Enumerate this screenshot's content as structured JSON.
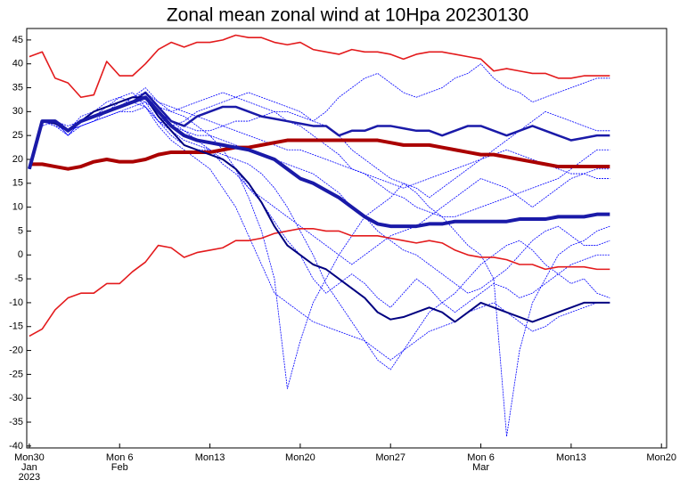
{
  "chart_data": {
    "type": "line",
    "title": "Zonal mean zonal wind at 10Hpa 20230130",
    "x": [
      0,
      1,
      2,
      3,
      4,
      5,
      6,
      7,
      8,
      9,
      10,
      11,
      12,
      13,
      14,
      15,
      16,
      17,
      18,
      19,
      20,
      21,
      22,
      23,
      24,
      25,
      26,
      27,
      28,
      29,
      30,
      31,
      32,
      33,
      34,
      35,
      36,
      37,
      38,
      39,
      40,
      41,
      42,
      43,
      44,
      45
    ],
    "xlim": [
      -0.2,
      49.4
    ],
    "xticks": [
      {
        "value": 0,
        "label": "Mon30\nJan\n2023"
      },
      {
        "value": 7,
        "label": "Mon 6\nFeb"
      },
      {
        "value": 14,
        "label": "Mon13"
      },
      {
        "value": 21,
        "label": "Mon20"
      },
      {
        "value": 28,
        "label": "Mon27"
      },
      {
        "value": 35,
        "label": "Mon 6\nMar"
      },
      {
        "value": 42,
        "label": "Mon13"
      },
      {
        "value": 49,
        "label": "Mon20"
      }
    ],
    "ylim": [
      -40.4,
      47.4
    ],
    "yticks": [
      -40,
      -35,
      -30,
      -25,
      -20,
      -15,
      -10,
      -5,
      0,
      5,
      10,
      15,
      20,
      25,
      30,
      35,
      40,
      45
    ],
    "series": [
      {
        "color": "#0000ff",
        "line_width": 0.8,
        "values": [
          18,
          28,
          27,
          25,
          27,
          28,
          29,
          30,
          31,
          32,
          28,
          25,
          23,
          22,
          22,
          21,
          20,
          19,
          17,
          14,
          10,
          5,
          0,
          -6,
          -10,
          -14,
          -18,
          -22,
          -24,
          -20,
          -16,
          -12,
          -10,
          -8,
          -5,
          -2,
          0,
          2,
          3,
          1,
          -2,
          -4,
          -6,
          -5,
          -8,
          -9
        ]
      },
      {
        "color": "#0000ff",
        "line_width": 0.8,
        "values": [
          18,
          28,
          28,
          26,
          29,
          30,
          31,
          32,
          33,
          35,
          32,
          30,
          29,
          27,
          25,
          22,
          18,
          12,
          5,
          -5,
          -28,
          -18,
          -10,
          -5,
          0,
          4,
          8,
          10,
          12,
          15,
          13,
          10,
          8,
          5,
          2,
          0,
          -5,
          -38,
          -20,
          -10,
          -5,
          0,
          2,
          3,
          5,
          6
        ]
      },
      {
        "color": "#0000ff",
        "line_width": 0.8,
        "values": [
          18,
          27,
          28,
          25,
          28,
          29,
          31,
          33,
          34,
          31,
          28,
          27,
          28,
          30,
          31,
          32,
          33,
          34,
          33,
          32,
          31,
          30,
          28,
          30,
          33,
          35,
          37,
          38,
          36,
          34,
          33,
          34,
          35,
          37,
          38,
          40,
          37,
          35,
          34,
          32,
          33,
          34,
          35,
          36,
          37,
          37
        ]
      },
      {
        "color": "#0000ff",
        "line_width": 0.8,
        "values": [
          18,
          28,
          27,
          26,
          27,
          28,
          29,
          30,
          30,
          31,
          27,
          24,
          22,
          20,
          18,
          14,
          10,
          4,
          -2,
          -8,
          -10,
          -12,
          -14,
          -15,
          -16,
          -17,
          -18,
          -20,
          -22,
          -20,
          -18,
          -16,
          -15,
          -14,
          -12,
          -11,
          -10,
          -12,
          -14,
          -16,
          -15,
          -13,
          -12,
          -11,
          -10,
          -10
        ]
      },
      {
        "color": "#0000ff",
        "line_width": 0.8,
        "values": [
          18,
          28,
          28,
          26,
          28,
          29,
          30,
          31,
          32,
          33,
          31,
          30,
          31,
          32,
          33,
          34,
          33,
          32,
          31,
          30,
          30,
          29,
          28,
          27,
          25,
          22,
          20,
          18,
          16,
          15,
          14,
          12,
          14,
          16,
          18,
          20,
          22,
          24,
          26,
          28,
          30,
          29,
          28,
          27,
          26,
          26
        ]
      },
      {
        "color": "#0000ff",
        "line_width": 0.8,
        "values": [
          18,
          28,
          28,
          25,
          28,
          29,
          30,
          31,
          33,
          33,
          29,
          27,
          26,
          25,
          25,
          24,
          23,
          22,
          21,
          20,
          19,
          18,
          17,
          15,
          13,
          10,
          8,
          5,
          3,
          1,
          0,
          -2,
          -4,
          -6,
          -8,
          -7,
          -5,
          -3,
          0,
          3,
          5,
          6,
          4,
          2,
          2,
          3
        ]
      },
      {
        "color": "#0000ff",
        "line_width": 0.8,
        "values": [
          18,
          28,
          28,
          27,
          28,
          30,
          32,
          33,
          32,
          31,
          28,
          26,
          24,
          23,
          22,
          20,
          18,
          14,
          12,
          10,
          8,
          6,
          4,
          2,
          0,
          -2,
          0,
          2,
          4,
          5,
          6,
          8,
          10,
          12,
          14,
          16,
          15,
          14,
          12,
          10,
          12,
          14,
          16,
          17,
          18,
          18
        ]
      },
      {
        "color": "#0000ff",
        "line_width": 0.8,
        "values": [
          18,
          28,
          27,
          26,
          28,
          29,
          30,
          31,
          32,
          33,
          30,
          28,
          27,
          26,
          26,
          27,
          28,
          28,
          29,
          30,
          28,
          27,
          25,
          23,
          21,
          18,
          17,
          15,
          13,
          12,
          10,
          9,
          8,
          8,
          9,
          10,
          11,
          12,
          13,
          14,
          15,
          16,
          18,
          20,
          22,
          22
        ]
      },
      {
        "color": "#0000ff",
        "line_width": 0.8,
        "values": [
          18,
          28,
          28,
          26,
          27,
          28,
          30,
          32,
          33,
          32,
          30,
          28,
          26,
          24,
          22,
          19,
          17,
          14,
          11,
          7,
          3,
          0,
          -5,
          -8,
          -6,
          -4,
          -6,
          -9,
          -11,
          -8,
          -5,
          -7,
          -10,
          -12,
          -10,
          -8,
          -6,
          -7,
          -9,
          -8,
          -6,
          -4,
          -2,
          -1,
          0,
          0
        ]
      },
      {
        "color": "#0000ff",
        "line_width": 0.8,
        "values": [
          18,
          28,
          28,
          26,
          28,
          30,
          31,
          32,
          33,
          34,
          32,
          31,
          30,
          29,
          28,
          27,
          26,
          25,
          24,
          23,
          22,
          22,
          21,
          20,
          19,
          18,
          17,
          16,
          15,
          14,
          15,
          16,
          17,
          18,
          19,
          20,
          21,
          22,
          21,
          20,
          19,
          18,
          17,
          17,
          16,
          16
        ]
      },
      {
        "color": "#e31a1c",
        "line_width": 1.6,
        "values": [
          41.5,
          42.5,
          37,
          36,
          33,
          33.5,
          40.5,
          37.5,
          37.5,
          40,
          43,
          44.5,
          43.5,
          44.5,
          44.5,
          45,
          46,
          45.5,
          45.5,
          44.5,
          44,
          44.5,
          43,
          42.5,
          42,
          43,
          42.5,
          42.5,
          42,
          41,
          42,
          42.5,
          42.5,
          42,
          41.5,
          41,
          38.5,
          39,
          38.5,
          38,
          38,
          37,
          37,
          37.5,
          37.5,
          37.5
        ]
      },
      {
        "color": "#e31a1c",
        "line_width": 1.6,
        "values": [
          -17,
          -15.5,
          -11.5,
          -9,
          -8,
          -8,
          -6,
          -6,
          -3.5,
          -1.5,
          2,
          1.5,
          -0.5,
          0.5,
          1,
          1.5,
          3,
          3,
          3.5,
          4.5,
          5,
          5.5,
          5.5,
          5,
          5,
          4,
          4,
          4,
          3.5,
          3,
          2.5,
          3,
          2.5,
          1,
          0,
          -0.5,
          -0.5,
          -1,
          -2,
          -2,
          -3,
          -2.5,
          -2.5,
          -2.5,
          -3,
          -3
        ]
      },
      {
        "color": "#aa0000",
        "line_width": 4,
        "values": [
          19,
          19,
          18.5,
          18,
          18.5,
          19.5,
          20,
          19.5,
          19.5,
          20,
          21,
          21.5,
          21.5,
          21.5,
          21.5,
          22,
          22.5,
          22.5,
          23,
          23.5,
          24,
          24,
          24,
          24,
          24,
          24,
          24,
          24,
          23.5,
          23,
          23,
          23,
          22.5,
          22,
          21.5,
          21,
          21,
          20.5,
          20,
          19.5,
          19,
          18.5,
          18.5,
          18.5,
          18.5,
          18.5
        ]
      },
      {
        "color": "#1a1aa8",
        "line_width": 2.5,
        "values": [
          18,
          28,
          28,
          26,
          28,
          29,
          30,
          31,
          32,
          34,
          31,
          28,
          27,
          29,
          30,
          31,
          31,
          30,
          29,
          28.5,
          28,
          27.5,
          27,
          27,
          25,
          26,
          26,
          27,
          27,
          26.5,
          26,
          26,
          25,
          26,
          27,
          27,
          26,
          25,
          26,
          27,
          26,
          25,
          24,
          24.5,
          25,
          25
        ]
      },
      {
        "color": "#000080",
        "line_width": 2,
        "values": [
          18,
          28,
          27.5,
          26,
          28,
          30,
          31,
          32,
          33,
          33,
          29,
          26,
          23,
          22,
          21,
          20,
          18,
          15,
          11,
          6,
          2,
          0,
          -2,
          -3,
          -5,
          -7,
          -9,
          -12,
          -13.5,
          -13,
          -12,
          -11,
          -12,
          -14,
          -12,
          -10,
          -11,
          -12,
          -13,
          -14,
          -13,
          -12,
          -11,
          -10,
          -10,
          -10
        ]
      },
      {
        "color": "#1a1aa8",
        "line_width": 4,
        "values": [
          18,
          28,
          28,
          26,
          28,
          29,
          30,
          31,
          32,
          33,
          30,
          27,
          25,
          24,
          23.5,
          23,
          22.5,
          22,
          21,
          20,
          18,
          16,
          15,
          13.5,
          12,
          10,
          8,
          6.5,
          6,
          6,
          6,
          6.5,
          6.5,
          7,
          7,
          7,
          7,
          7,
          7.5,
          7.5,
          7.5,
          8,
          8,
          8,
          8.5,
          8.5
        ]
      }
    ]
  }
}
